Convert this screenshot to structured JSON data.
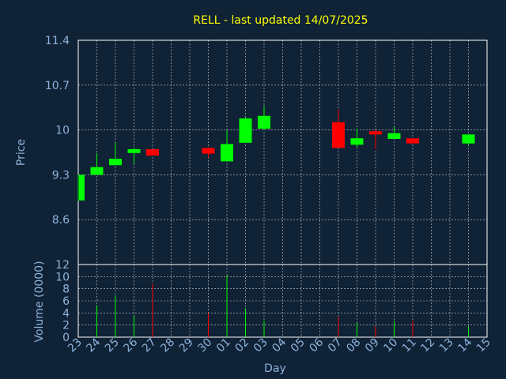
{
  "colors": {
    "background": "#0f2236",
    "title": "#ffff00",
    "axis_text": "#8fb3d9",
    "grid": "#ffffff",
    "up": "#00ff00",
    "down": "#ff0000"
  },
  "chart_data": [
    {
      "type": "candlestick",
      "title": "RELL - last updated 14/07/2025",
      "ylabel": "Price",
      "ylim": [
        7.9,
        11.4
      ],
      "yticks": [
        8.6,
        9.3,
        10,
        10.7,
        11.4
      ],
      "ytick_labels": [
        "8.6",
        "9.3",
        "10",
        "10.7",
        "11.4"
      ],
      "grid": true,
      "categories": [
        "23",
        "24",
        "25",
        "26",
        "27",
        "28",
        "29",
        "30",
        "01",
        "02",
        "03",
        "04",
        "05",
        "06",
        "07",
        "08",
        "09",
        "10",
        "11",
        "12",
        "13",
        "14",
        "15"
      ],
      "candles": [
        {
          "day": "23",
          "open": 8.9,
          "close": 9.3,
          "high": 9.3,
          "low": 8.9
        },
        {
          "day": "24",
          "open": 9.3,
          "close": 9.42,
          "high": 9.64,
          "low": 9.3
        },
        {
          "day": "25",
          "open": 9.45,
          "close": 9.55,
          "high": 9.8,
          "low": 9.45
        },
        {
          "day": "26",
          "open": 9.64,
          "close": 9.7,
          "high": 9.73,
          "low": 9.48
        },
        {
          "day": "27",
          "open": 9.7,
          "close": 9.6,
          "high": 9.7,
          "low": 9.6
        },
        {
          "day": "30",
          "open": 9.72,
          "close": 9.63,
          "high": 9.73,
          "low": 9.57
        },
        {
          "day": "01",
          "open": 9.51,
          "close": 9.78,
          "high": 10.0,
          "low": 9.51
        },
        {
          "day": "02",
          "open": 9.8,
          "close": 10.18,
          "high": 10.2,
          "low": 9.8
        },
        {
          "day": "03",
          "open": 10.02,
          "close": 10.22,
          "high": 10.38,
          "low": 10.0
        },
        {
          "day": "07",
          "open": 10.12,
          "close": 9.72,
          "high": 10.32,
          "low": 9.72
        },
        {
          "day": "08",
          "open": 9.77,
          "close": 9.87,
          "high": 10.02,
          "low": 9.73
        },
        {
          "day": "09",
          "open": 9.98,
          "close": 9.93,
          "high": 10.0,
          "low": 9.7
        },
        {
          "day": "10",
          "open": 9.86,
          "close": 9.95,
          "high": 10.05,
          "low": 9.86
        },
        {
          "day": "11",
          "open": 9.87,
          "close": 9.79,
          "high": 9.87,
          "low": 9.79
        },
        {
          "day": "14",
          "open": 9.79,
          "close": 9.93,
          "high": 9.93,
          "low": 9.76
        }
      ]
    },
    {
      "type": "bar",
      "ylabel": "Volume (0000)",
      "xlabel": "Day",
      "ylim": [
        0,
        12
      ],
      "yticks": [
        0,
        2,
        4,
        6,
        8,
        10,
        12
      ],
      "ytick_labels": [
        "0",
        "2",
        "4",
        "6",
        "8",
        "10",
        "12"
      ],
      "grid": true,
      "categories": [
        "23",
        "24",
        "25",
        "26",
        "27",
        "28",
        "29",
        "30",
        "01",
        "02",
        "03",
        "04",
        "05",
        "06",
        "07",
        "08",
        "09",
        "10",
        "11",
        "12",
        "13",
        "14",
        "15"
      ],
      "bars": [
        {
          "day": "23",
          "value": 0,
          "direction": "up"
        },
        {
          "day": "24",
          "value": 5.3,
          "direction": "up"
        },
        {
          "day": "25",
          "value": 6.9,
          "direction": "up"
        },
        {
          "day": "26",
          "value": 3.6,
          "direction": "up"
        },
        {
          "day": "27",
          "value": 8.8,
          "direction": "down"
        },
        {
          "day": "30",
          "value": 4.0,
          "direction": "down"
        },
        {
          "day": "01",
          "value": 10.2,
          "direction": "up"
        },
        {
          "day": "02",
          "value": 4.8,
          "direction": "up"
        },
        {
          "day": "03",
          "value": 2.7,
          "direction": "up"
        },
        {
          "day": "07",
          "value": 3.4,
          "direction": "down"
        },
        {
          "day": "08",
          "value": 2.4,
          "direction": "up"
        },
        {
          "day": "09",
          "value": 1.8,
          "direction": "down"
        },
        {
          "day": "10",
          "value": 2.7,
          "direction": "up"
        },
        {
          "day": "11",
          "value": 2.7,
          "direction": "down"
        },
        {
          "day": "14",
          "value": 1.8,
          "direction": "up"
        }
      ]
    }
  ]
}
